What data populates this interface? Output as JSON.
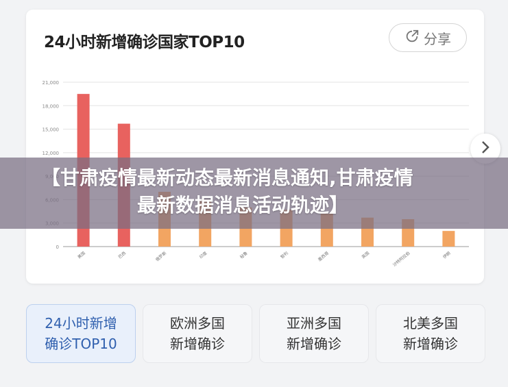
{
  "card": {
    "title": "24小时新增确诊国家TOP10",
    "share_label": "分享"
  },
  "overlay": {
    "line1": "【甘肃疫情最新动态最新消息通知,甘肃疫情",
    "line2": "最新数据消息活动轨迹】"
  },
  "tabs": [
    {
      "label": "24小时新增\n确诊TOP10",
      "active": true
    },
    {
      "label": "欧洲多国\n新增确诊",
      "active": false
    },
    {
      "label": "亚洲多国\n新增确诊",
      "active": false
    },
    {
      "label": "北美多国\n新增确诊",
      "active": false
    }
  ],
  "chart_data": {
    "type": "bar",
    "title": "24小时新增确诊国家TOP10",
    "categories": [
      "美国",
      "巴西",
      "俄罗斯",
      "印度",
      "秘鲁",
      "智利",
      "墨西哥",
      "英国",
      "沙特阿拉伯",
      "伊朗"
    ],
    "values": [
      19500,
      15700,
      7000,
      6000,
      5000,
      4700,
      4200,
      3700,
      3500,
      2000
    ],
    "ylim": [
      0,
      21000
    ],
    "yticks": [
      0,
      3000,
      6000,
      9000,
      12000,
      15000,
      18000,
      21000
    ],
    "ytick_labels": [
      "0",
      "3,000",
      "6,000",
      "9,000",
      "12,000",
      "15,000",
      "18,000",
      "21,000"
    ],
    "grid": true,
    "colors": {
      "top": "#e8625f",
      "rest": "#f2a562"
    }
  },
  "colors": {
    "accent": "#2f5fae",
    "bar_red": "#e8625f",
    "bar_orange": "#f2a562"
  },
  "icons": {
    "share": "share-icon",
    "next": "chevron-right-icon"
  }
}
